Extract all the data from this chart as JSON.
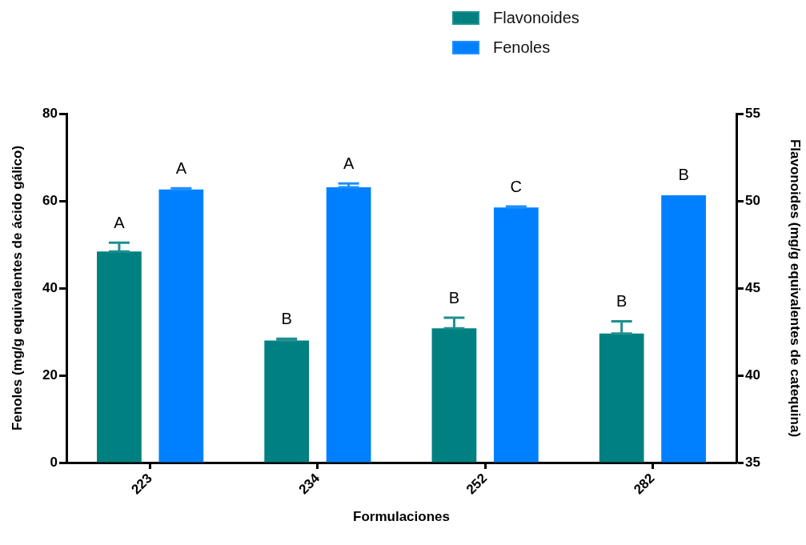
{
  "chart_data": {
    "type": "bar",
    "xlabel": "Formulaciones",
    "ylabel": "Fenoles (mg/g equivalentes de ácido gálico)",
    "y2label": "Flavonoides (mg/g equivalentes de catequina)",
    "categories": [
      "223",
      "234",
      "252",
      "282"
    ],
    "series": [
      {
        "name": "Flavonoides",
        "color": "#008080",
        "axis": "y2",
        "values": [
          47.1,
          42.0,
          42.7,
          42.4
        ],
        "errors": [
          [
            47.1,
            47.6
          ],
          [
            42.0,
            42.1
          ],
          [
            42.7,
            43.3
          ],
          [
            42.4,
            43.1
          ]
        ],
        "value_labels": [
          "A",
          "B",
          "B",
          "B"
        ]
      },
      {
        "name": "Fenoles",
        "color": "#0080ff",
        "axis": "y",
        "values": [
          62.6,
          63.1,
          58.5,
          61.3
        ],
        "errors": [
          [
            62.6,
            62.9
          ],
          [
            63.1,
            64.0
          ],
          [
            58.5,
            58.7
          ],
          null
        ],
        "value_labels": [
          "A",
          "A",
          "C",
          "B"
        ]
      }
    ],
    "ylim": [
      0,
      80
    ],
    "yticks": [
      0,
      20,
      40,
      60,
      80
    ],
    "y2lim": [
      35,
      55
    ],
    "y2ticks": [
      35,
      40,
      45,
      50,
      55
    ],
    "legend": "top right"
  }
}
